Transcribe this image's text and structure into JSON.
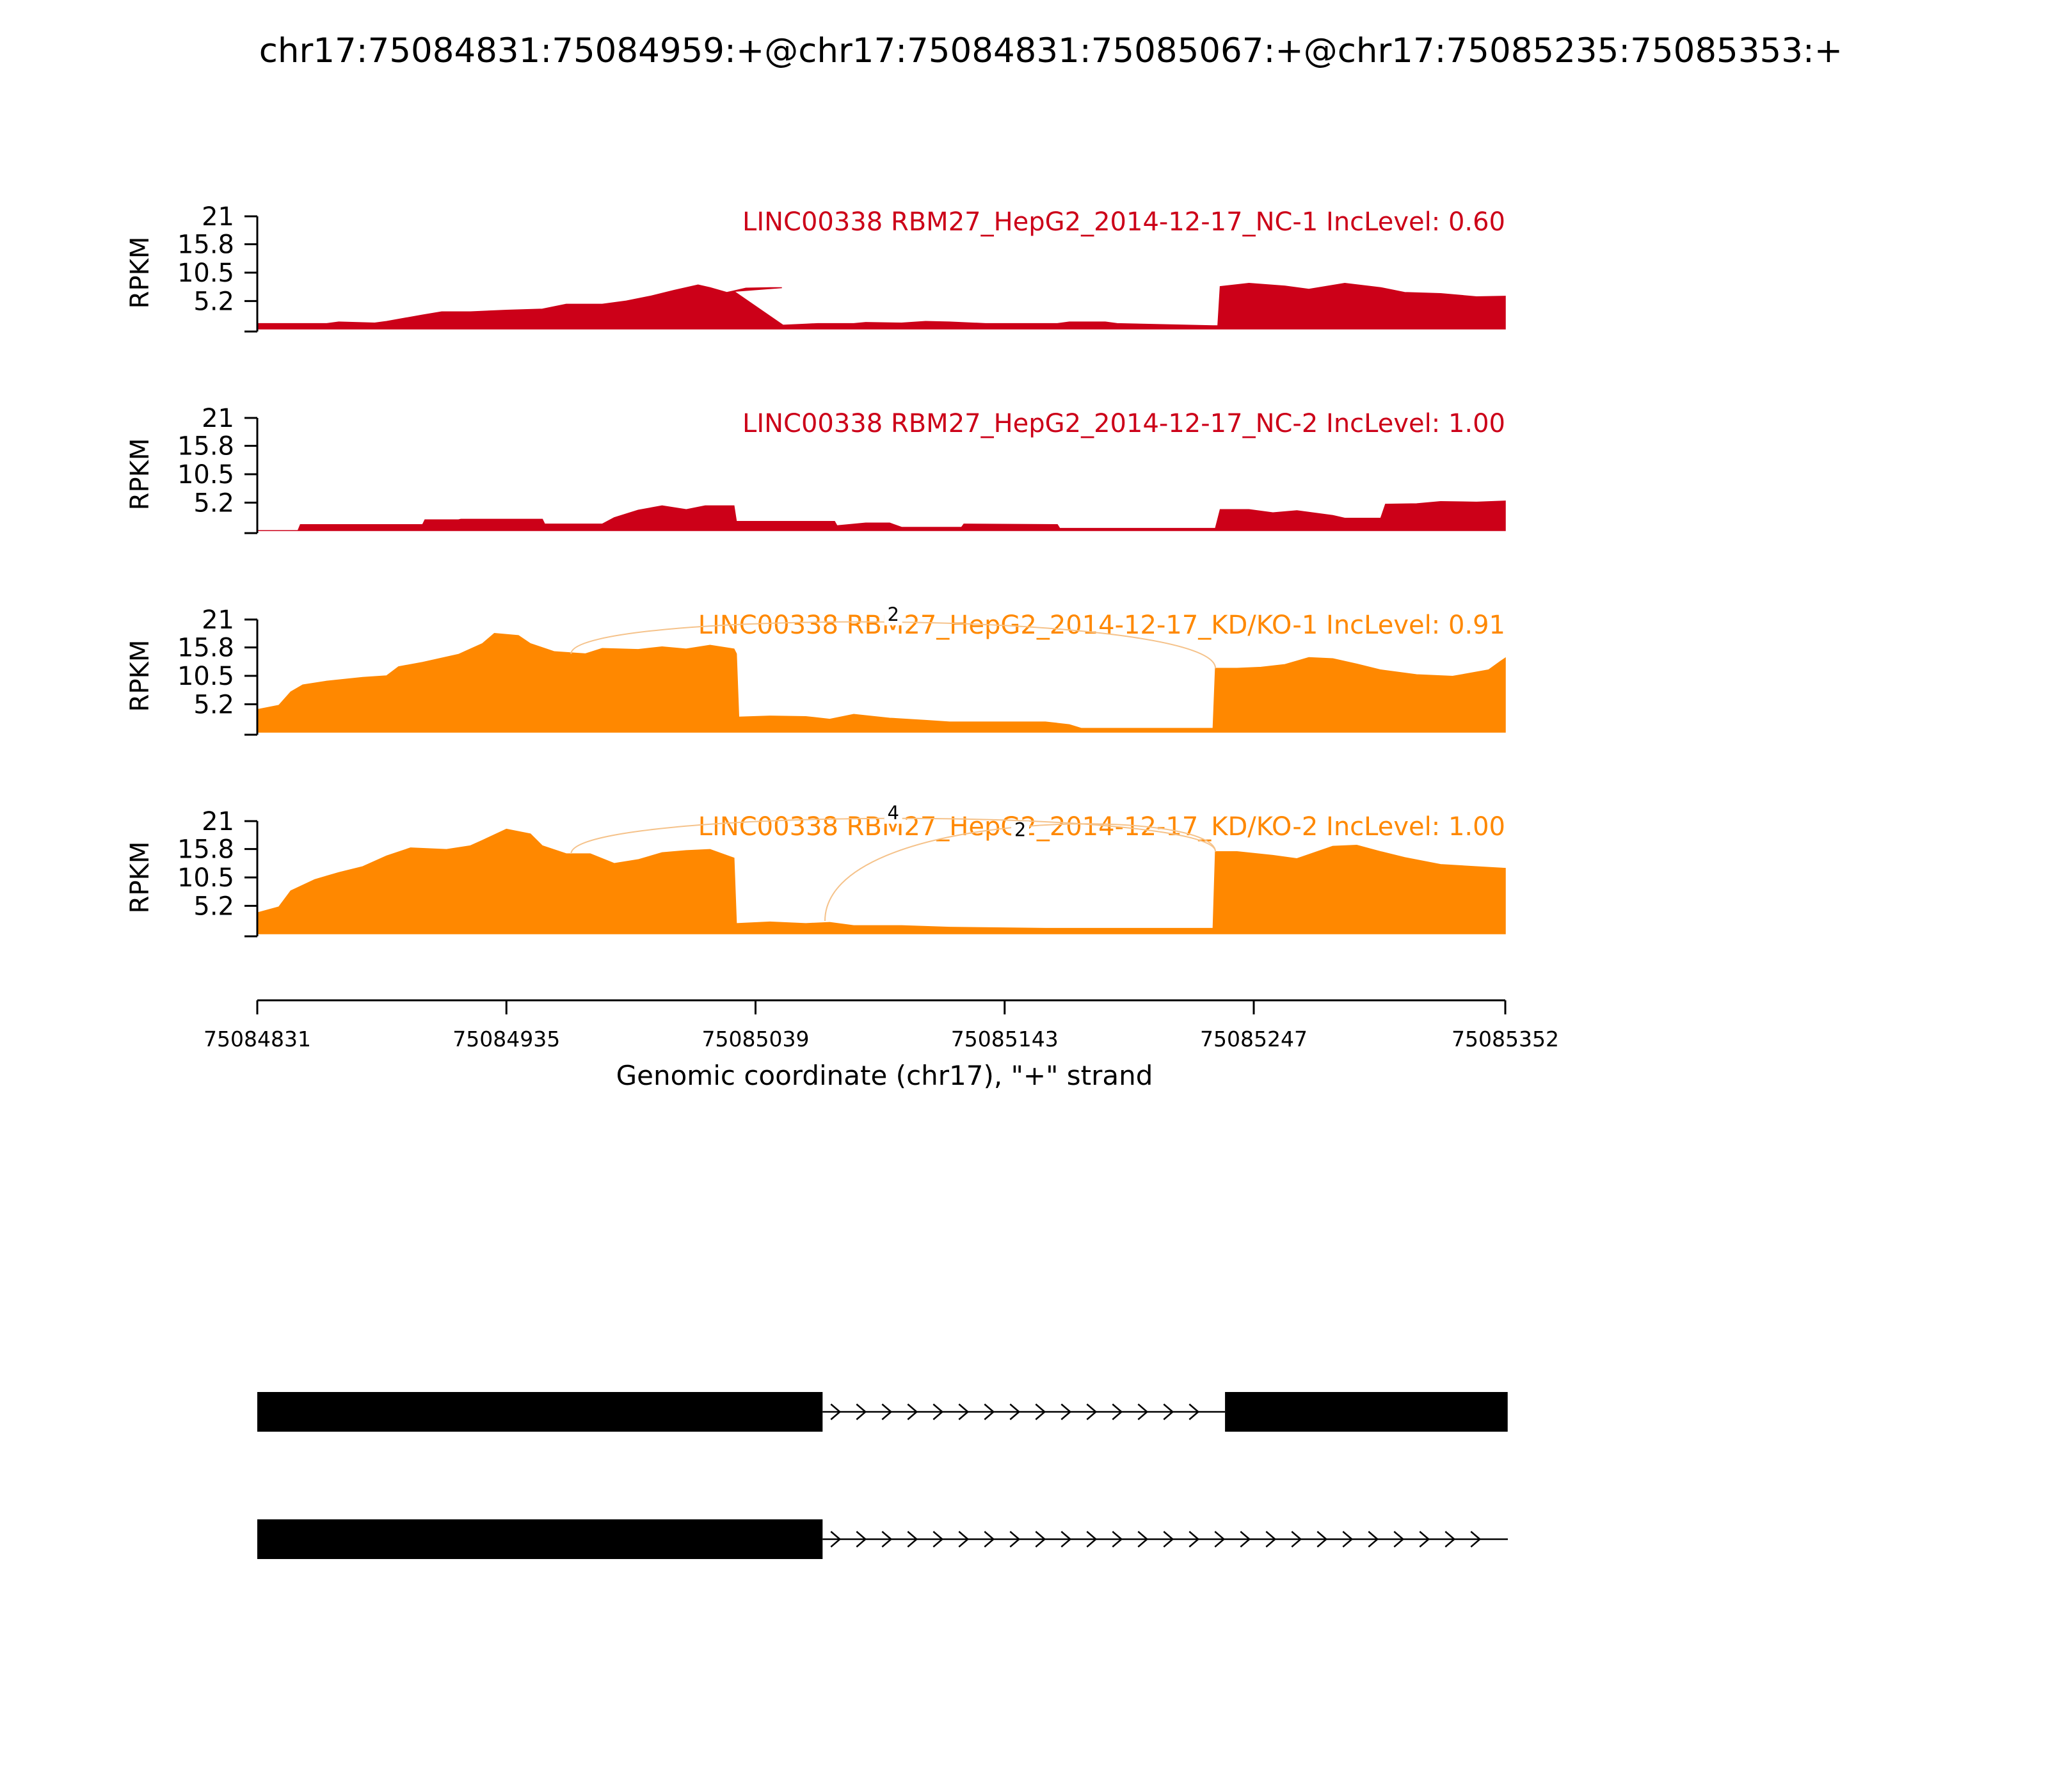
{
  "figure": {
    "title": "chr17:75084831:75084959:+@chr17:75084831:75085067:+@chr17:75085235:75085353:+"
  },
  "colors": {
    "control": "#cc0018",
    "knockdown": "#ff8800",
    "junction": "#f5c28a",
    "structure": "#000000"
  },
  "chart_data": {
    "type": "area",
    "xlabel": "Genomic coordinate (chr17), \"+\" strand",
    "ylabel": "RPKM",
    "xlim": [
      75084831,
      75085352
    ],
    "xticks": [
      75084831,
      75084935,
      75085039,
      75085143,
      75085247,
      75085352
    ],
    "ylim": [
      0,
      21
    ],
    "yticks": [
      5.2,
      10.5,
      15.8,
      21
    ],
    "ytick_labels": [
      "5.2",
      "10.5",
      "15.8",
      "21"
    ],
    "series": [
      {
        "name": "LINC00338 RBM27_HepG2_2014-12-17_NC-1 IncLevel: 0.60",
        "group": "control",
        "coverage": [
          [
            75084831,
            1.0
          ],
          [
            75084860,
            1.0
          ],
          [
            75084865,
            1.3
          ],
          [
            75084880,
            1.1
          ],
          [
            75084885,
            1.4
          ],
          [
            75084900,
            2.6
          ],
          [
            75084908,
            3.2
          ],
          [
            75084920,
            3.2
          ],
          [
            75084935,
            3.5
          ],
          [
            75084950,
            3.7
          ],
          [
            75084960,
            4.6
          ],
          [
            75084975,
            4.6
          ],
          [
            75084985,
            5.2
          ],
          [
            75084995,
            6.1
          ],
          [
            75085005,
            7.2
          ],
          [
            75085015,
            8.2
          ],
          [
            75085020,
            7.7
          ],
          [
            75085027,
            6.8
          ],
          [
            75085035,
            7.6
          ],
          [
            75085045,
            7.7
          ],
          [
            75085050,
            7.7
          ],
          [
            75085030,
            7.0
          ],
          [
            75085050.5,
            0.7
          ],
          [
            75085060,
            0.9
          ],
          [
            75085065,
            1.0
          ],
          [
            75085075,
            1.0
          ],
          [
            75085080,
            1.0
          ],
          [
            75085085,
            1.2
          ],
          [
            75085100,
            1.1
          ],
          [
            75085110,
            1.4
          ],
          [
            75085120,
            1.3
          ],
          [
            75085135,
            1.0
          ],
          [
            75085165,
            1.0
          ],
          [
            75085170,
            1.3
          ],
          [
            75085185,
            1.3
          ],
          [
            75085190,
            1.0
          ],
          [
            75085230,
            0.6
          ],
          [
            75085232,
            0.6
          ],
          [
            75085233,
            7.9
          ],
          [
            75085245,
            8.5
          ],
          [
            75085260,
            8.0
          ],
          [
            75085270,
            7.4
          ],
          [
            75085285,
            8.5
          ],
          [
            75085300,
            7.7
          ],
          [
            75085310,
            6.8
          ],
          [
            75085325,
            6.6
          ],
          [
            75085340,
            6.0
          ],
          [
            75085352,
            6.1
          ]
        ]
      },
      {
        "name": "LINC00338 RBM27_HepG2_2014-12-17_NC-2 IncLevel: 1.00",
        "group": "control",
        "coverage": [
          [
            75084831,
            0
          ],
          [
            75084848,
            0
          ],
          [
            75084849,
            1.1
          ],
          [
            75084900,
            1.1
          ],
          [
            75084901,
            2.0
          ],
          [
            75084915,
            2.0
          ],
          [
            75084916,
            2.1
          ],
          [
            75084950,
            2.1
          ],
          [
            75084951,
            1.2
          ],
          [
            75084975,
            1.2
          ],
          [
            75084980,
            2.4
          ],
          [
            75084990,
            3.8
          ],
          [
            75085000,
            4.6
          ],
          [
            75085010,
            3.9
          ],
          [
            75085018,
            4.6
          ],
          [
            75085030,
            4.6
          ],
          [
            75085031,
            1.7
          ],
          [
            75085072,
            1.7
          ],
          [
            75085073,
            0.9
          ],
          [
            75085085,
            1.4
          ],
          [
            75085095,
            1.4
          ],
          [
            75085100,
            0.6
          ],
          [
            75085125,
            0.6
          ],
          [
            75085126,
            1.2
          ],
          [
            75085165,
            1.1
          ],
          [
            75085166,
            0.4
          ],
          [
            75085231,
            0.4
          ],
          [
            75085233,
            3.9
          ],
          [
            75085245,
            3.9
          ],
          [
            75085255,
            3.3
          ],
          [
            75085265,
            3.7
          ],
          [
            75085280,
            2.8
          ],
          [
            75085285,
            2.3
          ],
          [
            75085300,
            2.3
          ],
          [
            75085302,
            4.9
          ],
          [
            75085315,
            5.0
          ],
          [
            75085325,
            5.4
          ],
          [
            75085340,
            5.3
          ],
          [
            75085352,
            5.5
          ]
        ]
      },
      {
        "name": "LINC00338 RBM27_HepG2_2014-12-17_KD/KO-1 IncLevel: 0.91",
        "group": "knockdown",
        "coverage": [
          [
            75084831,
            4.2
          ],
          [
            75084840,
            5.0
          ],
          [
            75084845,
            7.5
          ],
          [
            75084850,
            8.8
          ],
          [
            75084860,
            9.5
          ],
          [
            75084875,
            10.2
          ],
          [
            75084885,
            10.5
          ],
          [
            75084890,
            12.2
          ],
          [
            75084900,
            13.0
          ],
          [
            75084915,
            14.5
          ],
          [
            75084925,
            16.5
          ],
          [
            75084930,
            18.4
          ],
          [
            75084940,
            18.0
          ],
          [
            75084945,
            16.5
          ],
          [
            75084955,
            15.0
          ],
          [
            75084968,
            14.6
          ],
          [
            75084975,
            15.6
          ],
          [
            75084990,
            15.4
          ],
          [
            75085000,
            15.9
          ],
          [
            75085010,
            15.5
          ],
          [
            75085020,
            16.2
          ],
          [
            75085030,
            15.5
          ],
          [
            75085031,
            14.6
          ],
          [
            75085032,
            2.8
          ],
          [
            75085045,
            3.0
          ],
          [
            75085060,
            2.9
          ],
          [
            75085070,
            2.4
          ],
          [
            75085080,
            3.3
          ],
          [
            75085095,
            2.6
          ],
          [
            75085110,
            2.2
          ],
          [
            75085120,
            1.9
          ],
          [
            75085140,
            1.9
          ],
          [
            75085160,
            1.9
          ],
          [
            75085170,
            1.4
          ],
          [
            75085175,
            0.7
          ],
          [
            75085230,
            0.7
          ],
          [
            75085231,
            11.9
          ],
          [
            75085240,
            11.9
          ],
          [
            75085250,
            12.1
          ],
          [
            75085260,
            12.6
          ],
          [
            75085270,
            13.9
          ],
          [
            75085280,
            13.7
          ],
          [
            75085290,
            12.7
          ],
          [
            75085300,
            11.6
          ],
          [
            75085315,
            10.7
          ],
          [
            75085330,
            10.4
          ],
          [
            75085345,
            11.6
          ],
          [
            75085350,
            13.2
          ],
          [
            75085352,
            13.8
          ]
        ]
      },
      {
        "name": "LINC00338 RBM27_HepG2_2014-12-17_KD/KO-2 IncLevel: 1.00",
        "group": "knockdown",
        "coverage": [
          [
            75084831,
            3.9
          ],
          [
            75084840,
            5.0
          ],
          [
            75084845,
            8.0
          ],
          [
            75084855,
            10.1
          ],
          [
            75084865,
            11.4
          ],
          [
            75084875,
            12.5
          ],
          [
            75084885,
            14.5
          ],
          [
            75084895,
            16.0
          ],
          [
            75084910,
            15.7
          ],
          [
            75084920,
            16.4
          ],
          [
            75084925,
            17.4
          ],
          [
            75084935,
            19.5
          ],
          [
            75084945,
            18.6
          ],
          [
            75084950,
            16.4
          ],
          [
            75084960,
            14.9
          ],
          [
            75084970,
            14.9
          ],
          [
            75084980,
            13.1
          ],
          [
            75084990,
            13.8
          ],
          [
            75085000,
            15.1
          ],
          [
            75085010,
            15.5
          ],
          [
            75085020,
            15.7
          ],
          [
            75085030,
            14.1
          ],
          [
            75085031,
            1.9
          ],
          [
            75085045,
            2.2
          ],
          [
            75085060,
            1.9
          ],
          [
            75085070,
            2.1
          ],
          [
            75085080,
            1.5
          ],
          [
            75085100,
            1.5
          ],
          [
            75085120,
            1.2
          ],
          [
            75085140,
            1.1
          ],
          [
            75085160,
            1.0
          ],
          [
            75085230,
            1.0
          ],
          [
            75085231,
            15.3
          ],
          [
            75085240,
            15.3
          ],
          [
            75085255,
            14.6
          ],
          [
            75085265,
            14.0
          ],
          [
            75085280,
            16.3
          ],
          [
            75085290,
            16.5
          ],
          [
            75085300,
            15.3
          ],
          [
            75085310,
            14.2
          ],
          [
            75085325,
            12.9
          ],
          [
            75085340,
            12.5
          ],
          [
            75085352,
            12.2
          ]
        ]
      }
    ],
    "junctions": [
      {
        "track": 2,
        "from": 75084962,
        "to": 75085231,
        "count": "2"
      },
      {
        "track": 3,
        "from": 75084962,
        "to": 75085231,
        "count": "4"
      },
      {
        "track": 3,
        "from": 75085068,
        "to": 75085231,
        "count": "2"
      }
    ],
    "isoforms": [
      {
        "exons": [
          [
            75084831,
            75085067
          ],
          [
            75085235,
            75085353
          ]
        ]
      },
      {
        "exons": [
          [
            75084831,
            75085067
          ]
        ]
      }
    ]
  }
}
